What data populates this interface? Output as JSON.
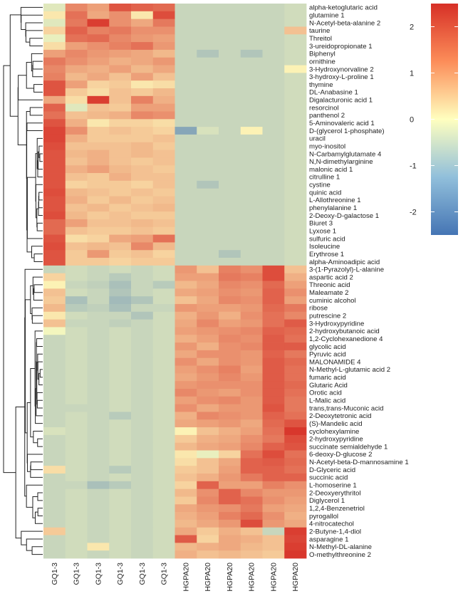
{
  "chart_data": {
    "type": "heatmap",
    "columns": [
      "GQ1-3",
      "GQ1-3",
      "GQ1-3",
      "GQ1-3",
      "GQ1-3",
      "GQ1-3",
      "HGPA20",
      "HGPA20",
      "HGPA20",
      "HGPA20",
      "HGPA20",
      "HGPA20"
    ],
    "rows": [
      "alpha-ketoglutaric acid",
      "glutamine 1",
      "N-Acetyl-beta-alanine 2",
      "taurine",
      "Threitol",
      "3-ureidopropionate 1",
      "Biphenyl",
      "ornithine",
      "3-Hydroxynorvaline 2",
      "3-hydroxy-L-proline 1",
      "thymine",
      "DL-Anabasine 1",
      "Digalacturonic acid 1",
      "resorcinol",
      "panthenol 2",
      "5-Aminovaleric acid 1",
      "D-(glycerol 1-phosphate)",
      "uracil",
      "myo-inositol",
      "N-Carbamylglutamate 4",
      "N,N-dimethylarginine",
      "malonic acid 1",
      "citrulline 1",
      "cystine",
      "quinic acid",
      "L-Allothreonine 1",
      "phenylalanine 1",
      "2-Deoxy-D-galactose 1",
      "Biuret 3",
      "Lyxose 1",
      "sulfuric acid",
      "Isoleucine",
      "Erythrose 1",
      "alpha-Aminoadipic acid",
      "3-(1-Pyrazolyl)-L-alanine",
      "aspartic acid 2",
      "Threonic acid",
      "Maleamate 2",
      "cuminic alcohol",
      "ribose",
      "putrescine 2",
      "3-Hydroxypyridine",
      "2-hydroxybutanoic acid",
      "1,2-Cyclohexanedione 4",
      "glycolic acid",
      "Pyruvic acid",
      "MALONAMIDE 4",
      "N-Methyl-L-glutamic acid 2",
      "fumaric acid",
      "Glutaric Acid",
      "Orotic acid",
      "L-Malic acid",
      "trans,trans-Muconic acid",
      "2-Deoxytetronic acid",
      "(S)-Mandelic acid",
      "cyclohexylamine",
      "2-hydroxypyridine",
      "succinate semialdehyde 1",
      "6-deoxy-D-glucose 2",
      "N-Acetyl-beta-D-mannosamine 1",
      "D-Glyceric acid",
      "succinic acid",
      "L-homoserine 1",
      "2-Deoxyerythritol",
      "Diglycerol 1",
      "1,2,4-Benzenetriol",
      "pyrogallol",
      "4-nitrocatechol",
      "2-Butyne-1,4-diol",
      "asparagine 1",
      "N-Methyl-DL-alanine",
      "O-methylthreonine 2"
    ],
    "values": [
      [
        -0.3,
        1.3,
        1.0,
        2.0,
        1.8,
        1.7,
        -0.6,
        -0.6,
        -0.6,
        -0.6,
        -0.6,
        -0.5
      ],
      [
        0.2,
        1.6,
        0.9,
        1.2,
        0.2,
        2.1,
        -0.6,
        -0.6,
        -0.6,
        -0.6,
        -0.6,
        -0.5
      ],
      [
        -0.3,
        1.5,
        2.3,
        1.2,
        0.9,
        1.5,
        -0.6,
        -0.6,
        -0.6,
        -0.6,
        -0.6,
        -0.5
      ],
      [
        0.4,
        1.8,
        1.4,
        1.5,
        1.2,
        1.2,
        -0.6,
        -0.6,
        -0.6,
        -0.6,
        -0.6,
        0.6
      ],
      [
        -0.2,
        1.6,
        1.7,
        1.3,
        1.1,
        1.0,
        -0.6,
        -0.6,
        -0.6,
        -0.6,
        -0.6,
        -0.5
      ],
      [
        0.3,
        1.0,
        1.2,
        1.4,
        1.6,
        1.1,
        -0.6,
        -0.6,
        -0.6,
        -0.6,
        -0.6,
        -0.5
      ],
      [
        1.0,
        1.3,
        1.1,
        1.0,
        0.9,
        0.7,
        -0.6,
        -0.9,
        -0.6,
        -0.9,
        -0.6,
        -0.5
      ],
      [
        1.5,
        1.2,
        1.0,
        0.8,
        0.9,
        1.1,
        -0.6,
        -0.6,
        -0.6,
        -0.6,
        -0.6,
        -0.5
      ],
      [
        1.3,
        0.9,
        0.8,
        1.0,
        0.7,
        0.9,
        -0.6,
        -0.6,
        -0.6,
        -0.6,
        -0.6,
        0.1
      ],
      [
        1.4,
        0.7,
        0.9,
        0.6,
        1.0,
        0.6,
        -0.6,
        -0.6,
        -0.6,
        -0.6,
        -0.6,
        -0.5
      ],
      [
        2.0,
        1.0,
        0.4,
        0.5,
        0.2,
        0.3,
        -0.6,
        -0.6,
        -0.6,
        -0.6,
        -0.6,
        -0.5
      ],
      [
        2.0,
        0.5,
        0.3,
        0.6,
        0.5,
        0.7,
        -0.6,
        -0.6,
        -0.6,
        -0.6,
        -0.6,
        -0.5
      ],
      [
        0.9,
        0.3,
        2.3,
        0.6,
        1.4,
        0.8,
        -0.6,
        -0.6,
        -0.6,
        -0.6,
        -0.6,
        -0.5
      ],
      [
        1.8,
        -0.3,
        0.6,
        0.5,
        1.0,
        1.0,
        -0.6,
        -0.6,
        -0.6,
        -0.6,
        -0.6,
        -0.5
      ],
      [
        1.6,
        0.6,
        0.7,
        0.8,
        1.3,
        1.2,
        -0.6,
        -0.6,
        -0.6,
        -0.6,
        -0.6,
        -0.5
      ],
      [
        2.0,
        0.8,
        0.2,
        0.4,
        0.4,
        0.3,
        -0.6,
        -0.6,
        -0.6,
        -0.6,
        -0.6,
        -0.5
      ],
      [
        2.2,
        1.2,
        0.5,
        0.6,
        0.5,
        0.4,
        -1.5,
        -0.4,
        -0.6,
        0.1,
        -0.6,
        -0.5
      ],
      [
        2.2,
        0.8,
        0.5,
        0.5,
        0.5,
        0.6,
        -0.6,
        -0.6,
        -0.6,
        -0.6,
        -0.6,
        -0.5
      ],
      [
        2.1,
        0.6,
        0.6,
        0.6,
        0.7,
        0.5,
        -0.6,
        -0.6,
        -0.6,
        -0.6,
        -0.6,
        -0.5
      ],
      [
        2.0,
        0.7,
        0.8,
        0.6,
        0.7,
        0.6,
        -0.6,
        -0.6,
        -0.6,
        -0.6,
        -0.6,
        -0.5
      ],
      [
        2.0,
        0.6,
        0.8,
        0.6,
        0.5,
        0.6,
        -0.6,
        -0.6,
        -0.6,
        -0.6,
        -0.6,
        -0.5
      ],
      [
        2.0,
        0.8,
        1.0,
        0.7,
        0.6,
        0.5,
        -0.6,
        -0.6,
        -0.6,
        -0.6,
        -0.6,
        -0.5
      ],
      [
        2.0,
        0.6,
        0.5,
        0.8,
        0.6,
        0.6,
        -0.6,
        -0.6,
        -0.6,
        -0.6,
        -0.6,
        -0.5
      ],
      [
        2.0,
        0.4,
        0.5,
        0.5,
        0.4,
        0.6,
        -0.6,
        -0.9,
        -0.6,
        -0.6,
        -0.6,
        -0.5
      ],
      [
        2.1,
        0.7,
        0.6,
        0.5,
        0.6,
        0.5,
        -0.6,
        -0.6,
        -0.6,
        -0.6,
        -0.6,
        -0.5
      ],
      [
        2.0,
        0.8,
        0.5,
        0.7,
        0.5,
        0.6,
        -0.6,
        -0.6,
        -0.6,
        -0.6,
        -0.6,
        -0.5
      ],
      [
        2.0,
        0.6,
        0.7,
        0.5,
        0.6,
        0.7,
        -0.6,
        -0.6,
        -0.6,
        -0.6,
        -0.6,
        -0.5
      ],
      [
        2.1,
        0.7,
        0.5,
        0.6,
        0.5,
        0.5,
        -0.6,
        -0.6,
        -0.6,
        -0.6,
        -0.6,
        -0.5
      ],
      [
        1.7,
        1.0,
        0.6,
        0.6,
        0.7,
        0.6,
        -0.6,
        -0.6,
        -0.6,
        -0.6,
        -0.6,
        -0.5
      ],
      [
        1.7,
        0.6,
        0.5,
        0.5,
        0.6,
        0.5,
        -0.6,
        -0.6,
        -0.6,
        -0.6,
        -0.6,
        -0.5
      ],
      [
        2.0,
        0.3,
        0.4,
        0.9,
        1.0,
        1.6,
        -0.6,
        -0.6,
        -0.6,
        -0.6,
        -0.6,
        -0.5
      ],
      [
        2.1,
        0.6,
        0.7,
        0.6,
        1.3,
        0.7,
        -0.6,
        -0.6,
        -0.6,
        -0.6,
        -0.6,
        -0.5
      ],
      [
        2.0,
        0.5,
        1.1,
        0.5,
        0.6,
        0.4,
        -0.6,
        -0.6,
        -0.9,
        -0.6,
        -0.6,
        -0.5
      ],
      [
        2.0,
        0.5,
        0.5,
        0.4,
        0.5,
        0.5,
        -0.6,
        -0.6,
        -0.6,
        -0.6,
        -0.6,
        -0.5
      ],
      [
        -0.6,
        -0.5,
        -0.6,
        -0.5,
        -0.6,
        -0.5,
        1.1,
        0.6,
        1.4,
        1.2,
        2.1,
        0.6
      ],
      [
        0.4,
        -0.5,
        -0.6,
        -0.8,
        -0.6,
        -0.5,
        1.0,
        1.0,
        1.5,
        1.4,
        2.1,
        0.8
      ],
      [
        0.1,
        -0.6,
        -0.7,
        -1.0,
        -0.6,
        -0.8,
        0.7,
        0.9,
        1.3,
        1.2,
        1.7,
        1.0
      ],
      [
        0.6,
        -0.5,
        -0.6,
        -0.9,
        -0.6,
        -0.5,
        0.9,
        1.0,
        1.2,
        1.1,
        1.8,
        1.2
      ],
      [
        0.5,
        -1.0,
        -0.6,
        -1.1,
        -0.9,
        -0.5,
        0.6,
        0.9,
        1.3,
        1.2,
        1.8,
        1.0
      ],
      [
        0.7,
        -0.8,
        -0.7,
        -1.0,
        -0.6,
        -0.6,
        1.1,
        1.0,
        1.0,
        1.1,
        1.7,
        1.5
      ],
      [
        0.2,
        -0.5,
        -0.6,
        -0.6,
        -0.9,
        -0.5,
        0.8,
        1.1,
        0.8,
        1.2,
        1.6,
        1.3
      ],
      [
        0.6,
        -0.6,
        -0.6,
        -0.7,
        -0.6,
        -0.5,
        0.9,
        1.3,
        1.0,
        1.1,
        1.6,
        1.9
      ],
      [
        -0.1,
        -0.5,
        -0.6,
        -0.5,
        -0.6,
        -0.5,
        1.0,
        1.1,
        1.2,
        1.3,
        1.8,
        1.7
      ],
      [
        -0.6,
        -0.5,
        -0.6,
        -0.5,
        -0.6,
        -0.5,
        0.8,
        1.0,
        1.3,
        1.2,
        1.9,
        1.6
      ],
      [
        -0.6,
        -0.5,
        -0.6,
        -0.5,
        -0.6,
        -0.5,
        1.1,
        0.8,
        1.2,
        1.3,
        1.9,
        1.9
      ],
      [
        -0.6,
        -0.5,
        -0.6,
        -0.5,
        -0.6,
        -0.5,
        0.9,
        1.2,
        1.2,
        1.1,
        1.8,
        1.5
      ],
      [
        -0.6,
        -0.5,
        -0.6,
        -0.5,
        -0.6,
        -0.5,
        1.2,
        0.9,
        1.2,
        1.1,
        1.9,
        1.7
      ],
      [
        -0.6,
        -0.5,
        -0.6,
        -0.5,
        -0.6,
        -0.5,
        1.0,
        1.2,
        1.4,
        1.0,
        1.9,
        1.6
      ],
      [
        -0.6,
        -0.5,
        -0.6,
        -0.5,
        -0.6,
        -0.5,
        0.9,
        1.1,
        1.3,
        1.1,
        1.9,
        1.6
      ],
      [
        -0.6,
        -0.5,
        -0.6,
        -0.5,
        -0.6,
        -0.5,
        1.1,
        1.2,
        1.2,
        1.2,
        1.9,
        1.7
      ],
      [
        -0.6,
        -0.5,
        -0.6,
        -0.5,
        -0.6,
        -0.5,
        1.3,
        1.1,
        1.0,
        1.2,
        1.9,
        1.6
      ],
      [
        -0.6,
        -0.5,
        -0.6,
        -0.5,
        -0.6,
        -0.5,
        1.0,
        1.2,
        1.3,
        1.1,
        1.9,
        1.5
      ],
      [
        -0.6,
        -0.6,
        -0.6,
        -0.5,
        -0.6,
        -0.5,
        1.2,
        0.9,
        1.1,
        1.1,
        2.0,
        1.5
      ],
      [
        -0.6,
        -0.5,
        -0.6,
        -0.8,
        -0.6,
        -0.5,
        0.8,
        1.3,
        1.2,
        1.1,
        1.8,
        1.6
      ],
      [
        -0.6,
        -0.5,
        -0.6,
        -0.5,
        -0.6,
        -0.5,
        0.9,
        1.0,
        1.1,
        0.9,
        1.7,
        2.0
      ],
      [
        -0.4,
        -0.5,
        -0.6,
        -0.5,
        -0.6,
        -0.5,
        0.1,
        0.6,
        0.8,
        1.0,
        1.6,
        2.4
      ],
      [
        -0.6,
        -0.5,
        -0.6,
        -0.5,
        -0.6,
        -0.5,
        0.5,
        0.8,
        0.9,
        1.2,
        1.5,
        2.1
      ],
      [
        -0.6,
        -0.5,
        -0.6,
        -0.5,
        -0.6,
        -0.5,
        0.7,
        0.9,
        1.0,
        1.3,
        1.8,
        2.0
      ],
      [
        -0.6,
        -0.5,
        -0.6,
        -0.5,
        -0.6,
        -0.5,
        0.2,
        -0.2,
        0.4,
        1.6,
        2.1,
        1.6
      ],
      [
        -0.6,
        -0.5,
        -0.6,
        -0.5,
        -0.6,
        -0.5,
        0.3,
        0.6,
        0.9,
        1.8,
        1.9,
        1.7
      ],
      [
        0.3,
        -0.5,
        -0.6,
        -0.8,
        -0.6,
        -0.5,
        0.5,
        0.6,
        1.0,
        1.8,
        1.8,
        1.6
      ],
      [
        -0.6,
        -0.5,
        -0.6,
        -0.5,
        -0.6,
        -0.5,
        0.6,
        0.8,
        1.1,
        1.5,
        1.8,
        1.8
      ],
      [
        -0.6,
        -0.6,
        -1.0,
        -0.8,
        -0.6,
        -0.5,
        0.4,
        1.8,
        1.0,
        1.0,
        1.4,
        1.2
      ],
      [
        -0.6,
        -0.5,
        -0.6,
        -0.5,
        -0.6,
        -0.5,
        0.7,
        1.2,
        1.8,
        1.3,
        1.1,
        1.1
      ],
      [
        -0.6,
        -0.5,
        -0.6,
        -0.5,
        -0.6,
        -0.5,
        0.5,
        1.3,
        1.8,
        1.6,
        1.2,
        1.0
      ],
      [
        -0.6,
        -0.5,
        -0.6,
        -0.5,
        -0.6,
        -0.5,
        0.9,
        1.1,
        1.2,
        1.5,
        1.0,
        0.9
      ],
      [
        -0.6,
        -0.5,
        -0.6,
        -0.5,
        -0.6,
        -0.5,
        0.8,
        1.0,
        1.4,
        1.7,
        1.2,
        0.8
      ],
      [
        -0.6,
        -0.5,
        -0.6,
        -0.5,
        -0.6,
        -0.5,
        0.7,
        0.9,
        1.1,
        2.1,
        1.1,
        0.9
      ],
      [
        0.5,
        -0.5,
        -0.6,
        -0.5,
        -0.6,
        -0.5,
        0.9,
        0.5,
        0.8,
        0.6,
        -0.6,
        2.3
      ],
      [
        -0.6,
        -0.5,
        -0.6,
        -0.5,
        -0.6,
        -0.5,
        1.9,
        0.4,
        0.9,
        0.8,
        0.6,
        2.2
      ],
      [
        -0.6,
        -0.5,
        0.2,
        -0.5,
        -0.6,
        -0.5,
        0.7,
        0.8,
        0.9,
        0.7,
        0.6,
        2.3
      ],
      [
        -0.6,
        -0.5,
        -0.6,
        -0.5,
        -0.6,
        -0.5,
        0.8,
        0.6,
        0.7,
        0.6,
        0.5,
        2.4
      ]
    ],
    "color_scale": {
      "min": -2.5,
      "mid": 0,
      "max": 2.5,
      "low_color": "#4575b4",
      "mid_color": "#ffffbf",
      "high_color": "#d73027",
      "ticks": [
        2,
        1,
        0,
        -1,
        -2
      ]
    },
    "legend_position": "top-right",
    "grid": false
  }
}
